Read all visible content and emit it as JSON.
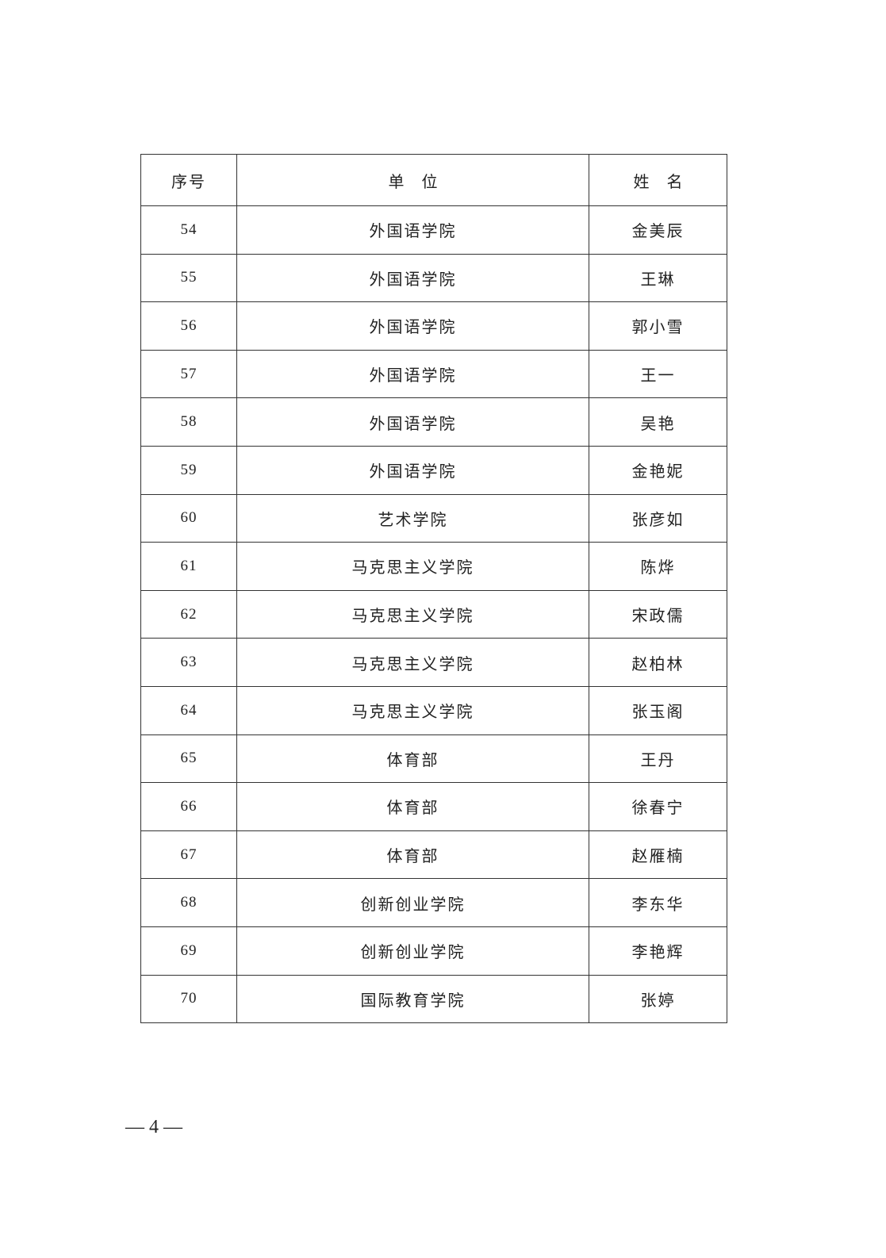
{
  "table": {
    "headers": [
      "序号",
      "单位",
      "姓名"
    ],
    "rows": [
      {
        "no": "54",
        "unit": "外国语学院",
        "name": "金美辰"
      },
      {
        "no": "55",
        "unit": "外国语学院",
        "name": "王琳"
      },
      {
        "no": "56",
        "unit": "外国语学院",
        "name": "郭小雪"
      },
      {
        "no": "57",
        "unit": "外国语学院",
        "name": "王一"
      },
      {
        "no": "58",
        "unit": "外国语学院",
        "name": "吴艳"
      },
      {
        "no": "59",
        "unit": "外国语学院",
        "name": "金艳妮"
      },
      {
        "no": "60",
        "unit": "艺术学院",
        "name": "张彦如"
      },
      {
        "no": "61",
        "unit": "马克思主义学院",
        "name": "陈烨"
      },
      {
        "no": "62",
        "unit": "马克思主义学院",
        "name": "宋政儒"
      },
      {
        "no": "63",
        "unit": "马克思主义学院",
        "name": "赵柏林"
      },
      {
        "no": "64",
        "unit": "马克思主义学院",
        "name": "张玉阁"
      },
      {
        "no": "65",
        "unit": "体育部",
        "name": "王丹"
      },
      {
        "no": "66",
        "unit": "体育部",
        "name": "徐春宁"
      },
      {
        "no": "67",
        "unit": "体育部",
        "name": "赵雁楠"
      },
      {
        "no": "68",
        "unit": "创新创业学院",
        "name": "李东华"
      },
      {
        "no": "69",
        "unit": "创新创业学院",
        "name": "李艳辉"
      },
      {
        "no": "70",
        "unit": "国际教育学院",
        "name": "张婷"
      }
    ]
  },
  "footer": {
    "page_number": "— 4 —"
  }
}
